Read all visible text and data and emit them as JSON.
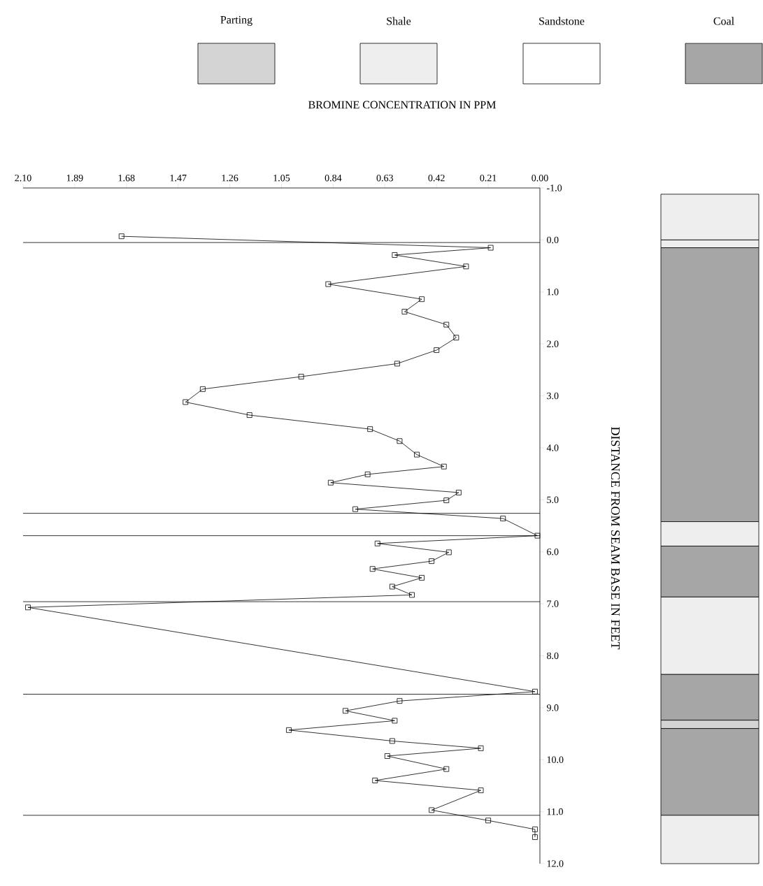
{
  "chart_data": [
    {
      "type": "line",
      "xlabel": "BROMINE CONCENTRATION IN PPM",
      "ylabel": "DISTANCE FROM SEAM BASE IN FEET",
      "x": [
        1.7,
        0.2,
        0.59,
        0.3,
        0.86,
        0.48,
        0.55,
        0.38,
        0.34,
        0.42,
        0.58,
        0.97,
        1.37,
        1.44,
        1.18,
        0.69,
        0.57,
        0.5,
        0.39,
        0.7,
        0.85,
        0.33,
        0.38,
        0.75,
        0.15,
        0.01,
        0.66,
        0.37,
        0.44,
        0.68,
        0.48,
        0.6,
        0.52,
        2.08,
        0.02,
        0.57,
        0.79,
        0.59,
        1.02,
        0.6,
        0.24,
        0.62,
        0.38,
        0.67,
        0.24,
        0.44,
        0.21,
        0.02,
        0.02
      ],
      "values": [
        -0.07,
        0.15,
        0.29,
        0.51,
        0.85,
        1.14,
        1.38,
        1.63,
        1.88,
        2.12,
        2.38,
        2.63,
        2.87,
        3.12,
        3.37,
        3.64,
        3.87,
        4.13,
        4.36,
        4.51,
        4.67,
        4.86,
        5.01,
        5.18,
        5.36,
        5.69,
        5.84,
        6.01,
        6.18,
        6.33,
        6.5,
        6.67,
        6.83,
        7.07,
        8.69,
        8.87,
        9.06,
        9.25,
        9.43,
        9.64,
        9.78,
        9.93,
        10.18,
        10.4,
        10.59,
        10.97,
        11.17,
        11.34,
        11.49
      ],
      "color": "#000000",
      "marker": "square",
      "line_style": "solid",
      "grid": false,
      "xlim": [
        2.1,
        0
      ],
      "xticks": [
        {
          "value": 0,
          "label": "0.00"
        },
        {
          "value": 0.21,
          "label": "0.21"
        },
        {
          "value": 0.42,
          "label": "0.42"
        },
        {
          "value": 0.63,
          "label": "0.63"
        },
        {
          "value": 0.84,
          "label": "0.84"
        },
        {
          "value": 1.05,
          "label": "1.05"
        },
        {
          "value": 1.26,
          "label": "1.26"
        },
        {
          "value": 1.47,
          "label": "1.47"
        },
        {
          "value": 1.68,
          "label": "1.68"
        },
        {
          "value": 1.89,
          "label": "1.89"
        },
        {
          "value": 2.1,
          "label": "2.10"
        }
      ],
      "ylim": [
        12,
        -1
      ],
      "yticks": [
        {
          "value": -1,
          "label": "-1.0"
        },
        {
          "value": 0,
          "label": "0.0"
        },
        {
          "value": 1,
          "label": "1.0"
        },
        {
          "value": 2,
          "label": "2.0"
        },
        {
          "value": 3,
          "label": "3.0"
        },
        {
          "value": 4,
          "label": "4.0"
        },
        {
          "value": 5,
          "label": "5.0"
        },
        {
          "value": 6,
          "label": "6.0"
        },
        {
          "value": 7,
          "label": "7.0"
        },
        {
          "value": 8,
          "label": "8.0"
        },
        {
          "value": 9,
          "label": "9.0"
        },
        {
          "value": 10,
          "label": "10.0"
        },
        {
          "value": 11,
          "label": "11.0"
        },
        {
          "value": 12,
          "label": "12.0"
        }
      ],
      "ref_lines": [
        {
          "axis": "y",
          "value": 0.05,
          "color": "#000000"
        },
        {
          "axis": "y",
          "value": 5.26,
          "color": "#000000"
        },
        {
          "axis": "y",
          "value": 5.69,
          "color": "#000000"
        },
        {
          "axis": "y",
          "value": 6.96,
          "color": "#000000"
        },
        {
          "axis": "y",
          "value": 8.74,
          "color": "#000000"
        },
        {
          "axis": "y",
          "value": 11.07,
          "color": "#000000"
        }
      ]
    },
    {
      "type": "bar",
      "stacked": true,
      "categories": [
        null
      ],
      "ylim": [
        12,
        -1
      ],
      "tick_labels": false,
      "series": [
        {
          "color": "#eeeeee",
          "values": [
            -0.88
          ]
        },
        {
          "color": "#eeeeee",
          "values": [
            0.15
          ]
        },
        {
          "color": "#a6a6a6",
          "values": [
            5.27
          ]
        },
        {
          "color": "#eeeeee",
          "values": [
            0.47
          ]
        },
        {
          "color": "#a6a6a6",
          "values": [
            0.98
          ]
        },
        {
          "color": "#eeeeee",
          "values": [
            1.49
          ]
        },
        {
          "color": "#a6a6a6",
          "values": [
            0.88
          ]
        },
        {
          "color": "#d4d4d4",
          "values": [
            0.16
          ]
        },
        {
          "color": "#a6a6a6",
          "values": [
            1.67
          ]
        },
        {
          "color": "#eeeeee",
          "values": [
            0.93
          ]
        }
      ]
    },
    {
      "type": "other",
      "annotations": [
        "Coal",
        "Sandstone",
        "Shale",
        "Parting"
      ],
      "colors": [
        "#a6a6a6",
        "#ffffff",
        "#eeeeee",
        "#d4d4d4"
      ]
    }
  ]
}
